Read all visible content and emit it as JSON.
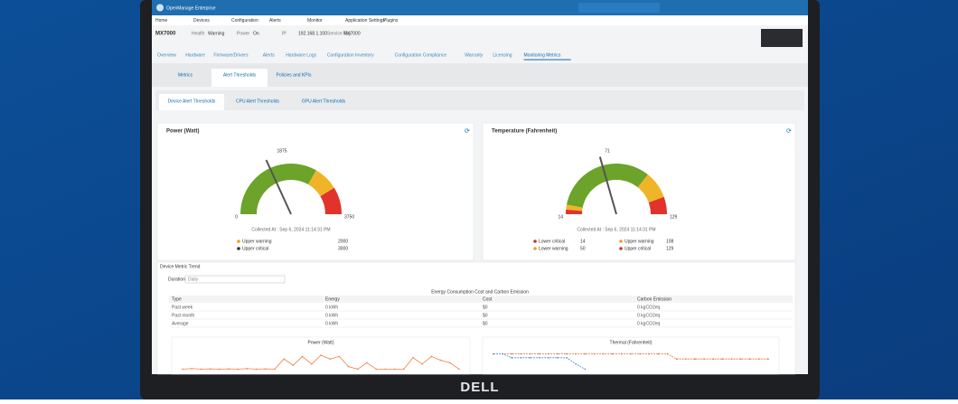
{
  "app_title": "OpenManage Enterprise",
  "nav": [
    "Home",
    "Devices",
    "Configuration",
    "Alerts",
    "Monitor",
    "Application Settings",
    "Plugins"
  ],
  "device": {
    "name": "MX7000",
    "health_label": "Health",
    "health": "Warning",
    "power_label": "Power",
    "power": "On",
    "ip_label": "IP",
    "ip": "192.168.1.100",
    "tag_label": "Service Tag",
    "tag": "MX7000"
  },
  "tabs": [
    "Overview",
    "Hardware",
    "Firmware/Drivers",
    "Alerts",
    "Hardware Logs",
    "Configuration Inventory",
    "Configuration Compliance",
    "Warranty",
    "Licensing",
    "Monitoring Metrics"
  ],
  "sub_tabs": [
    "Metrics",
    "Alert Thresholds",
    "Policies and KPIs"
  ],
  "threshold_tabs": [
    "Device Alert Thresholds",
    "CPU Alert Thresholds",
    "GPU Alert Thresholds"
  ],
  "cards": [
    {
      "title": "Power (Watt)",
      "scale": [
        "0",
        "1875",
        "3750"
      ],
      "collected": "Collected At : Sep 6, 2024 11:14:31 PM",
      "legend": [
        {
          "label": "Upper warning",
          "value": "2000",
          "color": "#f0a020"
        },
        {
          "label": "Upper critical",
          "value": "3000",
          "color": "#333333"
        }
      ]
    },
    {
      "title": "Temperature (Fahrenheit)",
      "scale": [
        "14",
        "71",
        "129"
      ],
      "collected": "Collected At : Sep 6, 2024 11:14:31 PM",
      "legend": [
        {
          "label": "Lower critical",
          "value": "14",
          "color": "#c0392b"
        },
        {
          "label": "Upper warning",
          "value": "108",
          "color": "#f0a020"
        },
        {
          "label": "Lower warning",
          "value": "50",
          "color": "#f0a020"
        },
        {
          "label": "Upper critical",
          "value": "129",
          "color": "#c0392b"
        }
      ]
    }
  ],
  "trend": {
    "title": "Device Metric Trend",
    "duration_label": "Duration",
    "duration": "Daily",
    "table": {
      "title": "Energy Consumption Cost and Carbon Emission",
      "columns": [
        "Type",
        "Energy",
        "Cost",
        "Carbon Emission"
      ],
      "rows": [
        [
          "Past week",
          "0 kWh",
          "$0",
          "0 kgCO2eq"
        ],
        [
          "Past month",
          "0 kWh",
          "$0",
          "0 kgCO2eq"
        ],
        [
          "Average",
          "0 kWh",
          "$0",
          "0 kgCO2eq"
        ]
      ]
    },
    "charts": [
      {
        "title": "Power (Watt)",
        "ylim": [
          0,
          100
        ],
        "series": [
          {
            "color": "#f08040",
            "values": [
              20,
              22,
              20,
              21,
              20,
              21,
              20,
              22,
              20,
              21,
              20,
              60,
              35,
              70,
              40,
              75,
              60,
              70,
              30,
              20,
              45,
              20,
              20,
              20,
              20,
              65,
              40,
              70,
              55,
              45,
              20
            ]
          }
        ]
      },
      {
        "title": "Thermal (Fahrenheit)",
        "ylim": [
          0,
          100
        ],
        "series": [
          {
            "color": "#e8703a",
            "values": [
              80,
              80,
              80,
              80,
              80,
              80,
              80,
              80,
              80,
              80,
              80,
              80,
              80,
              80,
              80,
              80,
              80,
              80,
              80,
              80,
              60,
              60,
              60,
              60,
              60,
              60,
              60,
              60,
              60,
              60,
              60
            ]
          },
          {
            "color": "#4a90d0",
            "values": [
              80,
              80,
              65,
              65,
              65,
              65,
              65,
              65,
              65,
              40,
              20,
              null,
              null,
              null,
              null,
              null,
              null,
              null,
              null,
              null,
              null,
              null,
              null,
              null,
              null,
              null,
              null,
              null,
              null,
              null,
              null
            ]
          }
        ]
      }
    ]
  },
  "brand": "DELL"
}
